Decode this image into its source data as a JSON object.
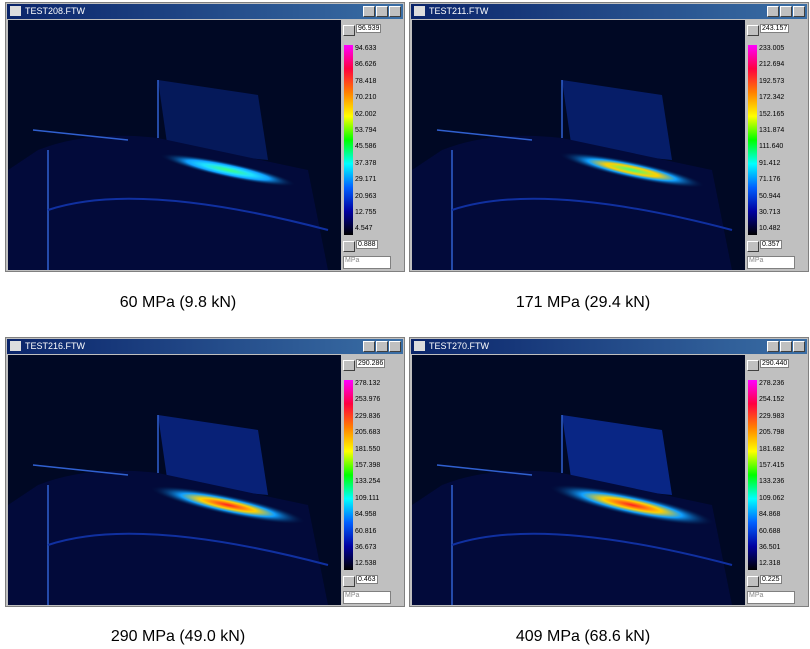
{
  "panels": [
    {
      "window_title": "TEST208.FTW",
      "max_label": "96.939",
      "scale_labels": [
        "94.633",
        "86.626",
        "78.418",
        "70.210",
        "62.002",
        "53.794",
        "45.586",
        "37.378",
        "29.171",
        "20.963",
        "12.755",
        "4.547"
      ],
      "min_label": "0.888",
      "unit": "MPa",
      "caption": "60 MPa (9.8 kN)"
    },
    {
      "window_title": "TEST211.FTW",
      "max_label": "243.157",
      "scale_labels": [
        "233.005",
        "212.694",
        "192.573",
        "172.342",
        "152.165",
        "131.874",
        "111.640",
        "91.412",
        "71.176",
        "50.944",
        "30.713",
        "10.482"
      ],
      "min_label": "0.357",
      "unit": "MPa",
      "caption": "171 MPa (29.4 kN)"
    },
    {
      "window_title": "TEST216.FTW",
      "max_label": "290.286",
      "scale_labels": [
        "278.132",
        "253.976",
        "229.836",
        "205.683",
        "181.550",
        "157.398",
        "133.254",
        "109.111",
        "84.958",
        "60.816",
        "36.673",
        "12.538"
      ],
      "min_label": "0.463",
      "unit": "MPa",
      "caption": "290 MPa (49.0 kN)"
    },
    {
      "window_title": "TEST270.FTW",
      "max_label": "290.440",
      "scale_labels": [
        "278.236",
        "254.152",
        "229.983",
        "205.798",
        "181.682",
        "157.415",
        "133.236",
        "109.062",
        "84.868",
        "60.688",
        "36.501",
        "12.318"
      ],
      "min_label": "0.225",
      "unit": "MPa",
      "caption": "409 MPa (68.6 kN)"
    }
  ]
}
